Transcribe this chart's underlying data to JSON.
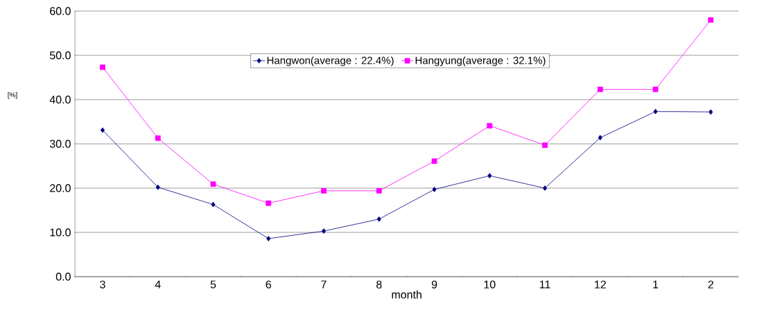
{
  "chart_data": {
    "type": "line",
    "xlabel": "month",
    "ylabel": "[%]",
    "categories": [
      "3",
      "4",
      "5",
      "6",
      "7",
      "8",
      "9",
      "10",
      "11",
      "12",
      "1",
      "2"
    ],
    "series": [
      {
        "name": "Hangwon(average : 22.4%)",
        "color": "#000080",
        "marker": "diamond",
        "values": [
          33.1,
          20.2,
          16.3,
          8.6,
          10.3,
          13.0,
          19.7,
          22.8,
          20.0,
          31.4,
          37.3,
          37.2
        ]
      },
      {
        "name": "Hangyung(average : 32.1%)",
        "color": "#ff00ff",
        "marker": "square",
        "values": [
          47.3,
          31.3,
          20.9,
          16.6,
          19.4,
          19.4,
          26.1,
          34.1,
          29.7,
          42.3,
          42.3,
          58.0
        ]
      }
    ],
    "ylim": [
      0,
      60
    ],
    "yticks": [
      {
        "value": 0,
        "label": "0.0"
      },
      {
        "value": 10,
        "label": "10.0"
      },
      {
        "value": 20,
        "label": "20.0"
      },
      {
        "value": 30,
        "label": "30.0"
      },
      {
        "value": 40,
        "label": "40.0"
      },
      {
        "value": 50,
        "label": "50.0"
      },
      {
        "value": 60,
        "label": "60.0"
      }
    ],
    "grid": "y",
    "legend": "top",
    "line_style": "solid"
  }
}
